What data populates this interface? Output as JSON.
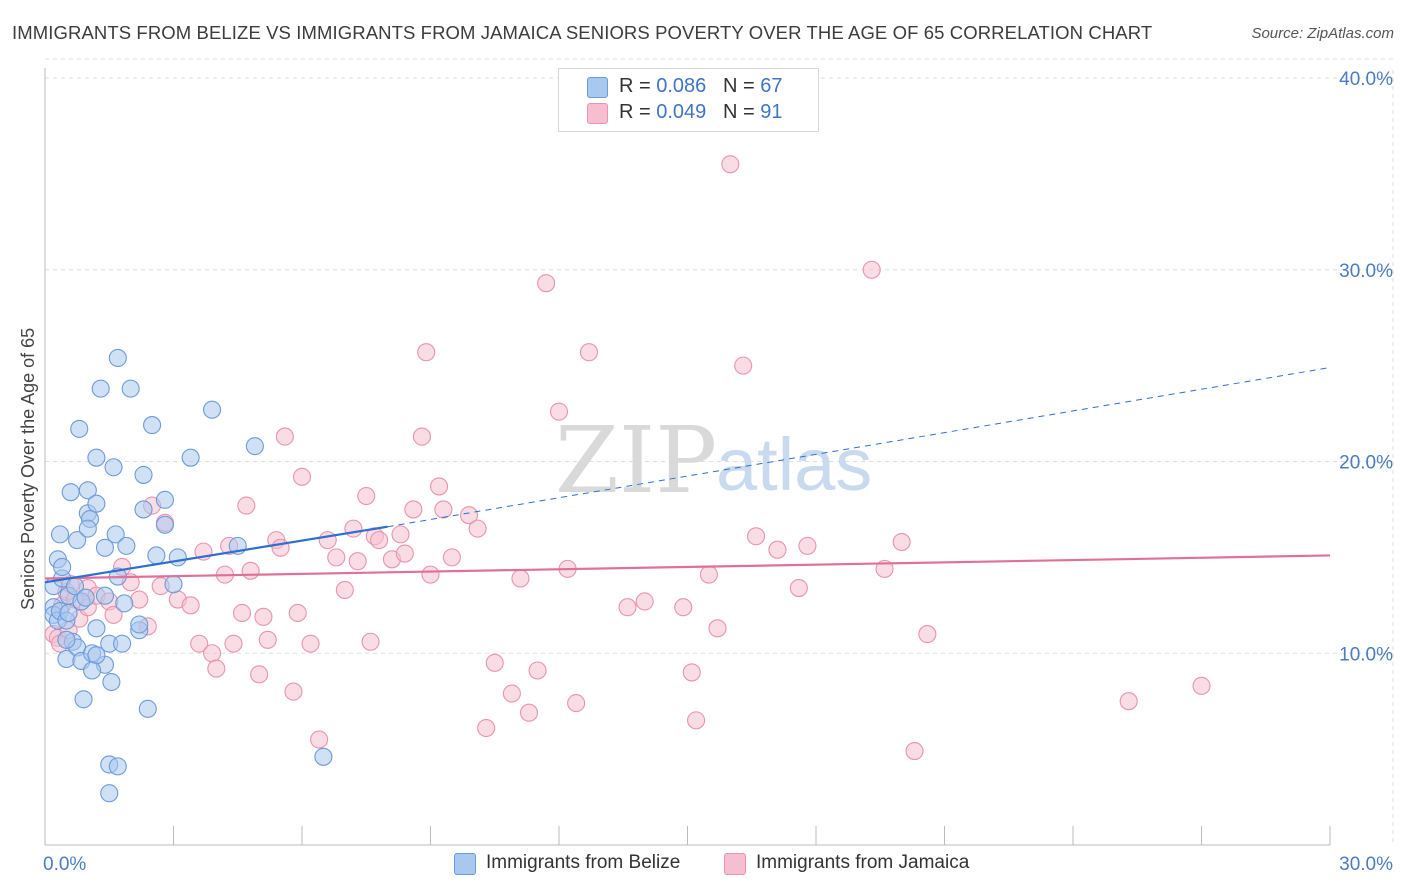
{
  "title": "IMMIGRANTS FROM BELIZE VS IMMIGRANTS FROM JAMAICA SENIORS POVERTY OVER THE AGE OF 65 CORRELATION CHART",
  "source": "Source: ZipAtlas.com",
  "watermark": {
    "zip": "ZIP",
    "atlas": "atlas"
  },
  "legend": {
    "belize": {
      "r_label": "R = ",
      "r_value": "0.086",
      "n_label": "N = ",
      "n_value": "67"
    },
    "jamaica": {
      "r_label": "R = ",
      "r_value": "0.049",
      "n_label": "N = ",
      "n_value": "91"
    }
  },
  "colors": {
    "belize_fill": "#a9c8ef",
    "belize_stroke": "#6d9bd8",
    "belize_line": "#2f6fd0",
    "jamaica_fill": "#f6bfd0",
    "jamaica_stroke": "#e993b0",
    "jamaica_line": "#e0709a",
    "tick_label": "#4a7cc2",
    "grid": "#dddddd"
  },
  "chart_data": {
    "type": "scatter",
    "title": "IMMIGRANTS FROM BELIZE VS IMMIGRANTS FROM JAMAICA SENIORS POVERTY OVER THE AGE OF 65 CORRELATION CHART",
    "xlabel": "",
    "ylabel": "Seniors Poverty Over the Age of 65",
    "xlim": [
      0,
      30
    ],
    "ylim": [
      0,
      40
    ],
    "x_tick_labels": [
      "0.0%",
      "30.0%"
    ],
    "y_ticks": [
      10,
      20,
      30,
      40
    ],
    "y_tick_labels": [
      "10.0%",
      "20.0%",
      "30.0%",
      "40.0%"
    ],
    "grid": true,
    "legend_position": "top-center",
    "series": [
      {
        "name": "Immigrants from Belize",
        "R": 0.086,
        "N": 67,
        "trend": {
          "solid": [
            [
              0,
              13.7
            ],
            [
              8,
              16.6
            ]
          ],
          "dashed": [
            [
              8,
              16.6
            ],
            [
              30,
              24.9
            ]
          ]
        },
        "points": [
          [
            0.2,
            12.4
          ],
          [
            0.2,
            12.0
          ],
          [
            0.3,
            11.7
          ],
          [
            0.3,
            14.9
          ],
          [
            0.2,
            13.5
          ],
          [
            0.35,
            12.2
          ],
          [
            0.4,
            13.9
          ],
          [
            0.4,
            14.5
          ],
          [
            0.5,
            11.7
          ],
          [
            0.55,
            13.0
          ],
          [
            0.55,
            12.1
          ],
          [
            0.6,
            18.4
          ],
          [
            0.65,
            10.6
          ],
          [
            0.7,
            13.5
          ],
          [
            0.75,
            10.3
          ],
          [
            0.75,
            15.9
          ],
          [
            0.5,
            9.7
          ],
          [
            0.5,
            10.7
          ],
          [
            0.85,
            12.7
          ],
          [
            0.85,
            9.6
          ],
          [
            0.9,
            7.6
          ],
          [
            1.0,
            18.5
          ],
          [
            1.0,
            17.3
          ],
          [
            1.05,
            17.0
          ],
          [
            1.0,
            16.5
          ],
          [
            0.8,
            21.7
          ],
          [
            1.2,
            17.8
          ],
          [
            1.2,
            20.2
          ],
          [
            1.3,
            23.8
          ],
          [
            1.4,
            15.5
          ],
          [
            1.4,
            13.0
          ],
          [
            1.4,
            9.4
          ],
          [
            1.5,
            10.5
          ],
          [
            1.55,
            8.5
          ],
          [
            1.6,
            19.7
          ],
          [
            1.65,
            16.2
          ],
          [
            1.7,
            25.4
          ],
          [
            1.7,
            14.0
          ],
          [
            1.2,
            11.3
          ],
          [
            1.1,
            10.0
          ],
          [
            1.2,
            9.9
          ],
          [
            1.1,
            9.1
          ],
          [
            1.9,
            15.6
          ],
          [
            1.8,
            10.5
          ],
          [
            1.85,
            12.6
          ],
          [
            2.0,
            23.8
          ],
          [
            2.2,
            11.2
          ],
          [
            2.2,
            11.5
          ],
          [
            2.3,
            17.5
          ],
          [
            2.3,
            19.3
          ],
          [
            2.4,
            7.1
          ],
          [
            2.5,
            21.9
          ],
          [
            2.6,
            15.1
          ],
          [
            2.8,
            16.7
          ],
          [
            2.8,
            18.0
          ],
          [
            3.0,
            13.6
          ],
          [
            3.1,
            15.0
          ],
          [
            3.4,
            20.2
          ],
          [
            3.9,
            22.7
          ],
          [
            4.5,
            15.6
          ],
          [
            4.9,
            20.8
          ],
          [
            6.5,
            4.6
          ],
          [
            1.5,
            4.2
          ],
          [
            1.7,
            4.1
          ],
          [
            1.5,
            2.7
          ],
          [
            0.35,
            16.2
          ],
          [
            0.95,
            12.9
          ]
        ]
      },
      {
        "name": "Immigrants from Jamaica",
        "R": 0.049,
        "N": 91,
        "trend": {
          "solid": [
            [
              0,
              13.9
            ],
            [
              30,
              15.1
            ]
          ]
        },
        "points": [
          [
            0.2,
            11.0
          ],
          [
            0.3,
            10.8
          ],
          [
            0.35,
            10.5
          ],
          [
            0.4,
            12.5
          ],
          [
            0.5,
            13.2
          ],
          [
            0.55,
            11.2
          ],
          [
            0.6,
            13.6
          ],
          [
            0.7,
            12.8
          ],
          [
            0.8,
            11.8
          ],
          [
            1.0,
            12.4
          ],
          [
            1.0,
            13.4
          ],
          [
            1.2,
            13.0
          ],
          [
            1.5,
            12.7
          ],
          [
            1.6,
            12.0
          ],
          [
            1.8,
            14.5
          ],
          [
            2.0,
            13.7
          ],
          [
            2.2,
            12.8
          ],
          [
            2.4,
            11.4
          ],
          [
            2.5,
            17.7
          ],
          [
            2.7,
            13.5
          ],
          [
            2.8,
            16.8
          ],
          [
            3.1,
            12.8
          ],
          [
            3.4,
            12.5
          ],
          [
            3.6,
            10.5
          ],
          [
            3.7,
            15.3
          ],
          [
            3.9,
            10.0
          ],
          [
            4.0,
            9.2
          ],
          [
            4.2,
            14.1
          ],
          [
            4.3,
            15.6
          ],
          [
            4.4,
            10.5
          ],
          [
            4.6,
            12.1
          ],
          [
            4.7,
            17.7
          ],
          [
            4.8,
            14.3
          ],
          [
            5.0,
            8.9
          ],
          [
            5.1,
            11.9
          ],
          [
            5.2,
            10.7
          ],
          [
            5.4,
            15.9
          ],
          [
            5.5,
            15.5
          ],
          [
            5.6,
            21.3
          ],
          [
            5.8,
            8.0
          ],
          [
            5.9,
            12.1
          ],
          [
            6.0,
            19.2
          ],
          [
            6.2,
            10.5
          ],
          [
            6.4,
            5.5
          ],
          [
            6.6,
            15.9
          ],
          [
            6.8,
            15.0
          ],
          [
            7.0,
            13.3
          ],
          [
            7.2,
            16.5
          ],
          [
            7.3,
            14.8
          ],
          [
            7.5,
            18.2
          ],
          [
            7.6,
            10.6
          ],
          [
            7.7,
            16.1
          ],
          [
            7.8,
            15.9
          ],
          [
            8.1,
            14.9
          ],
          [
            8.3,
            16.2
          ],
          [
            8.4,
            15.2
          ],
          [
            8.6,
            17.5
          ],
          [
            8.8,
            21.3
          ],
          [
            8.9,
            25.7
          ],
          [
            9.0,
            14.1
          ],
          [
            9.2,
            18.7
          ],
          [
            9.3,
            17.5
          ],
          [
            9.5,
            15.0
          ],
          [
            9.9,
            17.2
          ],
          [
            10.1,
            16.5
          ],
          [
            10.3,
            6.1
          ],
          [
            10.5,
            9.5
          ],
          [
            10.9,
            7.9
          ],
          [
            11.1,
            13.9
          ],
          [
            11.3,
            6.9
          ],
          [
            11.5,
            9.1
          ],
          [
            11.7,
            29.3
          ],
          [
            12.0,
            22.6
          ],
          [
            12.2,
            14.4
          ],
          [
            12.4,
            7.4
          ],
          [
            12.7,
            25.7
          ],
          [
            13.6,
            12.4
          ],
          [
            14.0,
            12.7
          ],
          [
            14.9,
            12.4
          ],
          [
            15.1,
            9.0
          ],
          [
            15.2,
            6.5
          ],
          [
            15.5,
            14.1
          ],
          [
            15.7,
            11.3
          ],
          [
            16.0,
            35.5
          ],
          [
            16.3,
            25.0
          ],
          [
            16.6,
            16.1
          ],
          [
            17.1,
            15.4
          ],
          [
            17.6,
            13.4
          ],
          [
            17.8,
            15.6
          ],
          [
            19.3,
            30.0
          ],
          [
            19.6,
            14.4
          ]
        ],
        "extra_points": [
          [
            20.0,
            15.8
          ],
          [
            20.3,
            4.9
          ],
          [
            20.6,
            11.0
          ],
          [
            25.3,
            7.5
          ],
          [
            27.0,
            8.3
          ]
        ]
      }
    ]
  },
  "bottom_legend": {
    "belize": "Immigrants from Belize",
    "jamaica": "Immigrants from Jamaica"
  }
}
